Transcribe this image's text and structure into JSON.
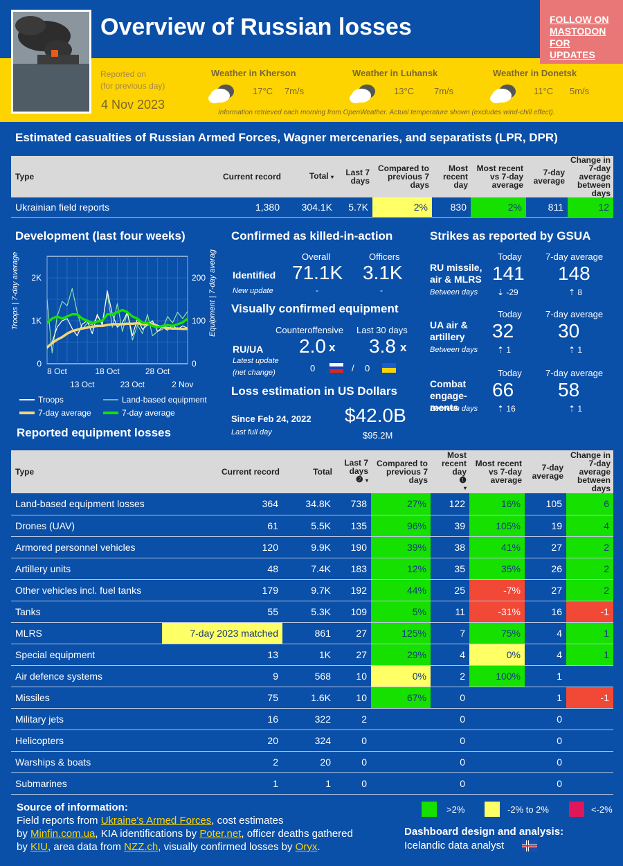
{
  "header": {
    "title": "Overview of Russian losses",
    "follow": "FOLLOW ON MASTODON FOR UPDATES",
    "reported_l1": "Reported on",
    "reported_l2": "(for previous day)",
    "date": "4 Nov 2023",
    "weather": [
      {
        "title": "Weather in Kherson",
        "temp": "17°C",
        "wind": "7m/s"
      },
      {
        "title": "Weather in Luhansk",
        "temp": "13°C",
        "wind": "7m/s"
      },
      {
        "title": "Weather in Donetsk",
        "temp": "11°C",
        "wind": "5m/s"
      }
    ],
    "weather_note": "Information retrieved each morning from OpenWeather. Actual temperature shown (excludes wind-chill effect)."
  },
  "casualties": {
    "title": "Estimated casualties of Russian Armed Forces, Wagner mercenaries, and separatists (LPR, DPR)",
    "headers": [
      "Type",
      "Current record",
      "Total",
      "Last 7 days",
      "Compared to previous 7 days",
      "Most recent day",
      "Most recent vs 7-day average",
      "7-day average",
      "Change in 7-day average between days"
    ],
    "row": {
      "type": "Ukrainian field reports",
      "record": "1,380",
      "total": "304.1K",
      "last7": "5.7K",
      "compared": "2%",
      "recent": "830",
      "vsavg": "2%",
      "avg7": "811",
      "change": "12"
    }
  },
  "development": {
    "title": "Development (last four weeks)",
    "y_left_label": "Troops | 7-day average",
    "y_right_label": "Equipment | 7-day average",
    "legend": [
      "Troops",
      "Land-based equipment",
      "7-day average",
      "7-day average"
    ]
  },
  "chart_data": {
    "type": "line",
    "title": "Development (last four weeks)",
    "x": [
      "6 Oct",
      "7 Oct",
      "8 Oct",
      "9 Oct",
      "10 Oct",
      "11 Oct",
      "12 Oct",
      "13 Oct",
      "14 Oct",
      "15 Oct",
      "16 Oct",
      "17 Oct",
      "18 Oct",
      "19 Oct",
      "20 Oct",
      "21 Oct",
      "22 Oct",
      "23 Oct",
      "24 Oct",
      "25 Oct",
      "26 Oct",
      "27 Oct",
      "28 Oct",
      "29 Oct",
      "30 Oct",
      "31 Oct",
      "1 Nov",
      "2 Nov",
      "3 Nov"
    ],
    "x_ticks_top": [
      "8 Oct",
      "18 Oct",
      "28 Oct"
    ],
    "x_ticks_bottom": [
      "13 Oct",
      "23 Oct",
      "2 Nov"
    ],
    "y_left_ticks": [
      "2K",
      "1K",
      "0"
    ],
    "y_right_ticks": [
      "200",
      "100",
      "0"
    ],
    "ylim_left": [
      0,
      2500
    ],
    "ylim_right": [
      0,
      250
    ],
    "series": [
      {
        "name": "Troops",
        "axis": "left",
        "values": [
          350,
          500,
          850,
          1000,
          1050,
          820,
          650,
          920,
          1000,
          700,
          1150,
          900,
          1700,
          1150,
          850,
          950,
          1200,
          650,
          1050,
          800,
          900,
          1000,
          750,
          850,
          780,
          900,
          800,
          880,
          830
        ]
      },
      {
        "name": "Land-based equipment",
        "axis": "right",
        "values": [
          150,
          25,
          110,
          145,
          135,
          175,
          120,
          80,
          95,
          90,
          110,
          95,
          165,
          85,
          140,
          75,
          120,
          55,
          90,
          70,
          115,
          65,
          75,
          80,
          110,
          95,
          120,
          105,
          122
        ]
      },
      {
        "name": "Troops 7-day average",
        "axis": "left",
        "values": [
          380,
          480,
          560,
          620,
          700,
          760,
          790,
          820,
          840,
          860,
          880,
          880,
          900,
          920,
          920,
          920,
          930,
          930,
          940,
          920,
          920,
          930,
          880,
          850,
          830,
          820,
          820,
          810,
          811
        ]
      },
      {
        "name": "Equipment 7-day average",
        "axis": "right",
        "values": [
          95,
          105,
          110,
          105,
          110,
          115,
          115,
          105,
          100,
          95,
          98,
          100,
          115,
          115,
          120,
          125,
          120,
          110,
          105,
          95,
          95,
          88,
          85,
          88,
          90,
          88,
          92,
          96,
          105
        ]
      }
    ]
  },
  "kia": {
    "title": "Confirmed as killed-in-action",
    "overall_label": "Overall",
    "officers_label": "Officers",
    "identified": "Identified",
    "new_update": "New update",
    "overall": "71.1K",
    "officers": "3.1K",
    "overall_delta": "-",
    "officers_delta": "-"
  },
  "equipment_confirmed": {
    "title": "Visually confirmed equipment",
    "counter_label": "Counteroffensive",
    "last30_label": "Last 30 days",
    "ruua": "RU/UA",
    "latest": "Latest update",
    "net": "(net change)",
    "counter_val": "2.0",
    "last30_val": "3.8",
    "x": "x",
    "ru_change": "0",
    "sep": "/",
    "ua_change": "0"
  },
  "usd": {
    "title": "Loss estimation in US Dollars",
    "since": "Since Feb 24, 2022",
    "last_full_day": "Last full day",
    "total": "$42.0B",
    "day": "$95.2M"
  },
  "strikes": {
    "title": "Strikes as reported by GSUA",
    "today_label": "Today",
    "avg_label": "7-day average",
    "between": "Between days",
    "rows": [
      {
        "label": "RU missile, air & MLRS",
        "today": "141",
        "avg": "148",
        "today_delta": "⇣ -29",
        "avg_delta": "⇡ 8"
      },
      {
        "label": "UA air & artillery",
        "today": "32",
        "avg": "30",
        "today_delta": "⇡ 1",
        "avg_delta": "⇡ 1"
      },
      {
        "label": "Combat engage-ments",
        "today": "66",
        "avg": "58",
        "today_delta": "⇡ 16",
        "avg_delta": "⇡ 1"
      }
    ]
  },
  "equipment": {
    "title": "Reported equipment losses",
    "headers": [
      "Type",
      "Current record",
      "Total",
      "Last 7 days",
      "Compared to previous 7 days",
      "Most recent day",
      "Most recent vs 7-day average",
      "7-day average",
      "Change in 7-day average between days"
    ],
    "header_marks": {
      "last7": "❷",
      "recent": "❶"
    },
    "rows": [
      {
        "type": "Land-based equipment losses",
        "record": "364",
        "total": "34.8K",
        "last7": "738",
        "compared": "27%",
        "recent": "122",
        "vsavg": "16%",
        "avg7": "105",
        "change": "6",
        "c_cls": "g",
        "v_cls": "g",
        "ch_cls": "g"
      },
      {
        "type": "Drones (UAV)",
        "record": "61",
        "total": "5.5K",
        "last7": "135",
        "compared": "96%",
        "recent": "39",
        "vsavg": "105%",
        "avg7": "19",
        "change": "4",
        "c_cls": "g",
        "v_cls": "g",
        "ch_cls": "g"
      },
      {
        "type": "Armored personnel vehicles",
        "record": "120",
        "total": "9.9K",
        "last7": "190",
        "compared": "39%",
        "recent": "38",
        "vsavg": "41%",
        "avg7": "27",
        "change": "2",
        "c_cls": "g",
        "v_cls": "g",
        "ch_cls": "g"
      },
      {
        "type": "Artillery units",
        "record": "48",
        "total": "7.4K",
        "last7": "183",
        "compared": "12%",
        "recent": "35",
        "vsavg": "35%",
        "avg7": "26",
        "change": "2",
        "c_cls": "g",
        "v_cls": "g",
        "ch_cls": "g"
      },
      {
        "type": "Other vehicles incl. fuel tanks",
        "record": "179",
        "total": "9.7K",
        "last7": "192",
        "compared": "44%",
        "recent": "25",
        "vsavg": "-7%",
        "avg7": "27",
        "change": "2",
        "c_cls": "g",
        "v_cls": "r",
        "ch_cls": "g"
      },
      {
        "type": "Tanks",
        "record": "55",
        "total": "5.3K",
        "last7": "109",
        "compared": "5%",
        "recent": "11",
        "vsavg": "-31%",
        "avg7": "16",
        "change": "-1",
        "c_cls": "g",
        "v_cls": "r",
        "ch_cls": "r"
      },
      {
        "type": "MLRS",
        "record": "7-day 2023 matched",
        "total": "861",
        "last7": "27",
        "compared": "125%",
        "recent": "7",
        "vsavg": "75%",
        "avg7": "4",
        "change": "1",
        "c_cls": "g",
        "v_cls": "g",
        "ch_cls": "g",
        "rec_cls": "match"
      },
      {
        "type": "Special equipment",
        "record": "13",
        "total": "1K",
        "last7": "27",
        "compared": "29%",
        "recent": "4",
        "vsavg": "0%",
        "avg7": "4",
        "change": "1",
        "c_cls": "g",
        "v_cls": "y",
        "ch_cls": "g"
      },
      {
        "type": "Air defence systems",
        "record": "9",
        "total": "568",
        "last7": "10",
        "compared": "0%",
        "recent": "2",
        "vsavg": "100%",
        "avg7": "1",
        "change": "",
        "c_cls": "y",
        "v_cls": "g",
        "ch_cls": ""
      },
      {
        "type": "Missiles",
        "record": "75",
        "total": "1.6K",
        "last7": "10",
        "compared": "67%",
        "recent": "0",
        "vsavg": "",
        "avg7": "1",
        "change": "-1",
        "c_cls": "g",
        "v_cls": "",
        "ch_cls": "r"
      },
      {
        "type": "Military jets",
        "record": "16",
        "total": "322",
        "last7": "2",
        "compared": "",
        "recent": "0",
        "vsavg": "",
        "avg7": "0",
        "change": "",
        "c_cls": "",
        "v_cls": "",
        "ch_cls": ""
      },
      {
        "type": "Helicopters",
        "record": "20",
        "total": "324",
        "last7": "0",
        "compared": "",
        "recent": "0",
        "vsavg": "",
        "avg7": "0",
        "change": "",
        "c_cls": "",
        "v_cls": "",
        "ch_cls": ""
      },
      {
        "type": "Warships & boats",
        "record": "2",
        "total": "20",
        "last7": "0",
        "compared": "",
        "recent": "0",
        "vsavg": "",
        "avg7": "0",
        "change": "",
        "c_cls": "",
        "v_cls": "",
        "ch_cls": ""
      },
      {
        "type": "Submarines",
        "record": "1",
        "total": "1",
        "last7": "0",
        "compared": "",
        "recent": "0",
        "vsavg": "",
        "avg7": "0",
        "change": "",
        "c_cls": "",
        "v_cls": "",
        "ch_cls": ""
      }
    ]
  },
  "footer": {
    "source_title": "Source of information:",
    "line1_a": "Field reports from ",
    "link_armed": "Ukraine's Armed Forces",
    "line1_b": ", cost estimates",
    "line2_a": "by ",
    "link_minfin": "Minfin.com.ua",
    "line2_b": ", KIA identifications by ",
    "link_poter": "Poter.net",
    "line2_c": ", officer deaths gathered",
    "line3_a": "by ",
    "link_kiu": "KIU",
    "line3_b": ", area data from ",
    "link_nzz": "NZZ.ch",
    "line3_c": ", visually confirmed losses by ",
    "link_oryx": "Oryx",
    "line3_d": ".",
    "legend": [
      {
        "label": ">2%",
        "color": "#16e000"
      },
      {
        "label": "-2% to 2%",
        "color": "#ffff66"
      },
      {
        "label": "<-2%",
        "color": "#e0165a"
      }
    ],
    "design_title": "Dashboard design and analysis:",
    "designer": "Icelandic data analyst"
  },
  "colors": {
    "brand_blue": "#0a4fa8",
    "brand_yellow": "#fdd400",
    "follow": "#e97777",
    "green": "#16e000",
    "yellow": "#ffff66",
    "red": "#f24836"
  }
}
